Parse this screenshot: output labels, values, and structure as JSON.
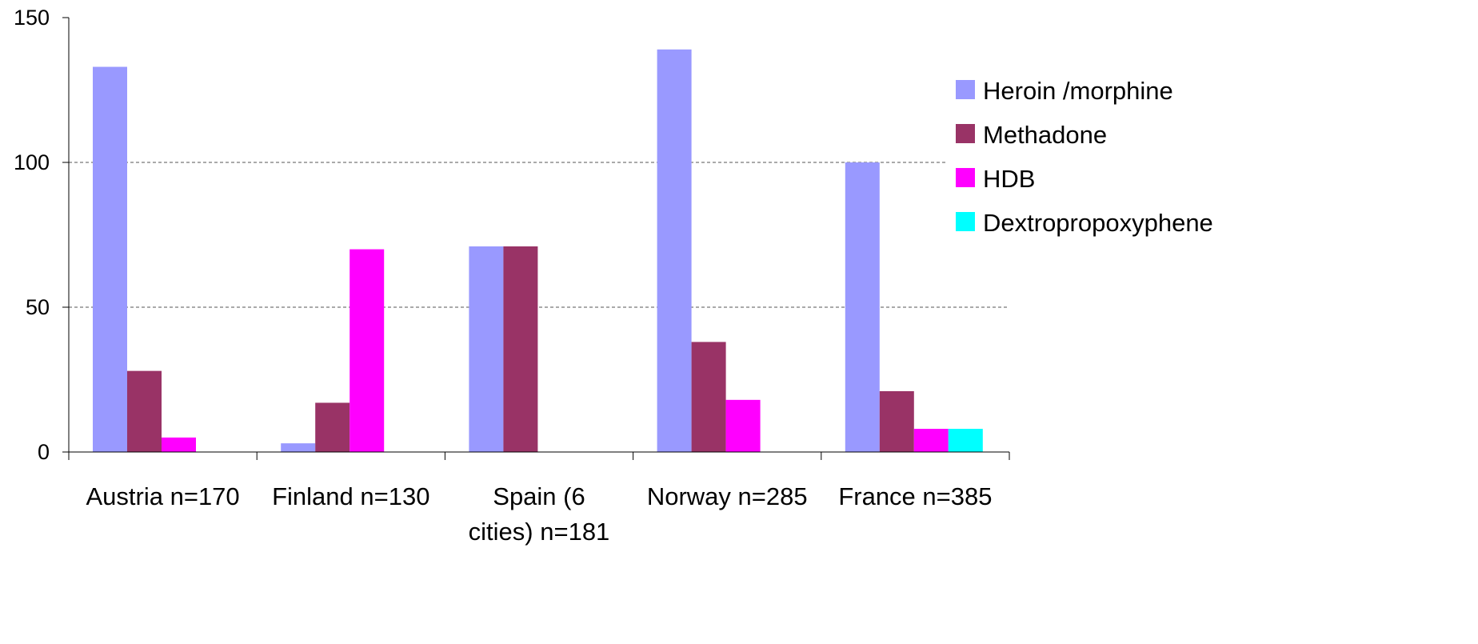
{
  "chart_data": {
    "type": "bar",
    "title": "",
    "xlabel": "",
    "ylabel": "",
    "ylim": [
      0,
      150
    ],
    "y_ticks": [
      "0",
      "50",
      "100",
      "150"
    ],
    "categories": [
      [
        "Austria n=170"
      ],
      [
        "Finland n=130"
      ],
      [
        "Spain (6",
        "cities) n=181"
      ],
      [
        "Norway n=285"
      ],
      [
        "France n=385"
      ]
    ],
    "series": [
      {
        "name": "Heroin /morphine",
        "color": "#9999ff",
        "values": [
          133,
          3,
          71,
          139,
          100
        ]
      },
      {
        "name": "Methadone",
        "color": "#993366",
        "values": [
          28,
          17,
          71,
          38,
          21
        ]
      },
      {
        "name": "HDB",
        "color": "#ff00ff",
        "values": [
          5,
          70,
          0,
          18,
          8
        ]
      },
      {
        "name": "Dextropropoxyphene",
        "color": "#00ffff",
        "values": [
          0,
          0,
          0,
          0,
          8
        ]
      }
    ],
    "grid": "dashed horizontal",
    "legend_position": "right"
  }
}
